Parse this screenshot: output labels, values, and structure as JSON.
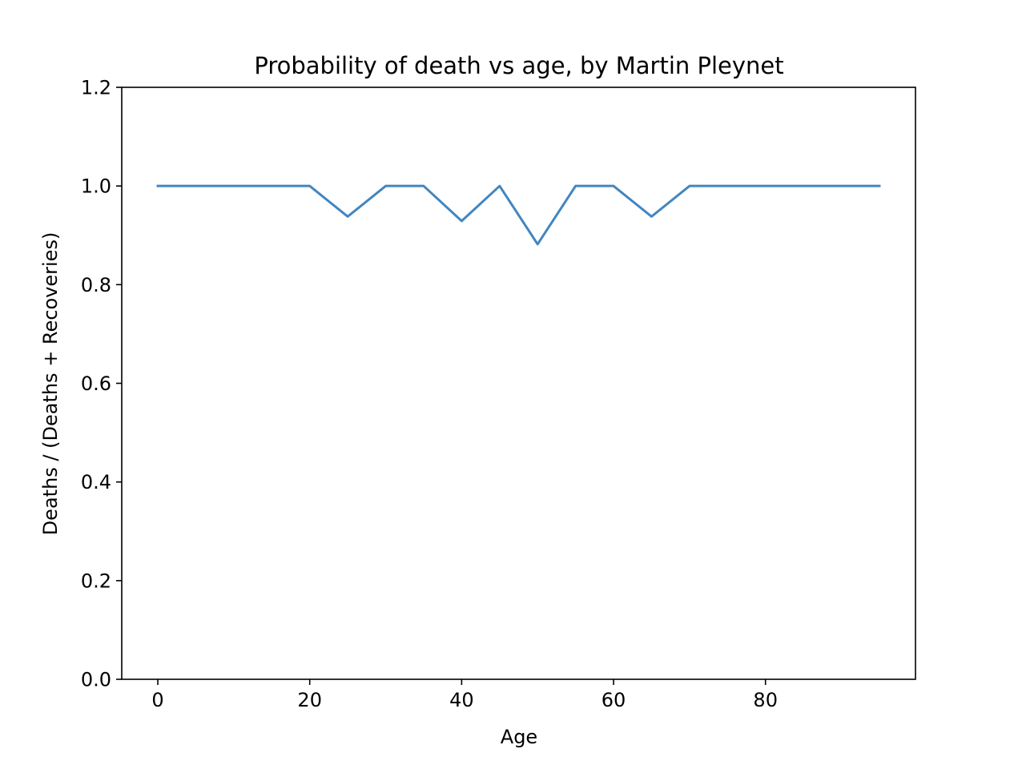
{
  "chart_data": {
    "type": "line",
    "title": "Probability of death vs age, by Martin Pleynet",
    "xlabel": "Age",
    "ylabel": "Deaths / (Deaths + Recoveries)",
    "xlim": [
      -4.75,
      99.75
    ],
    "ylim": [
      0.0,
      1.2
    ],
    "xticks": [
      0,
      20,
      40,
      60,
      80
    ],
    "xtick_labels": [
      "0",
      "20",
      "40",
      "60",
      "80"
    ],
    "yticks": [
      0.0,
      0.2,
      0.4,
      0.6,
      0.8,
      1.0,
      1.2
    ],
    "ytick_labels": [
      "0.0",
      "0.2",
      "0.4",
      "0.6",
      "0.8",
      "1.0",
      "1.2"
    ],
    "grid": false,
    "series": [
      {
        "color": "#4286c0",
        "x": [
          0,
          5,
          10,
          15,
          20,
          25,
          30,
          35,
          40,
          45,
          50,
          55,
          60,
          65,
          70,
          75,
          80,
          85,
          90,
          95
        ],
        "y": [
          1.0,
          1.0,
          1.0,
          1.0,
          1.0,
          0.938,
          1.0,
          1.0,
          0.929,
          1.0,
          0.882,
          1.0,
          1.0,
          0.938,
          1.0,
          1.0,
          1.0,
          1.0,
          1.0,
          1.0
        ]
      }
    ]
  }
}
